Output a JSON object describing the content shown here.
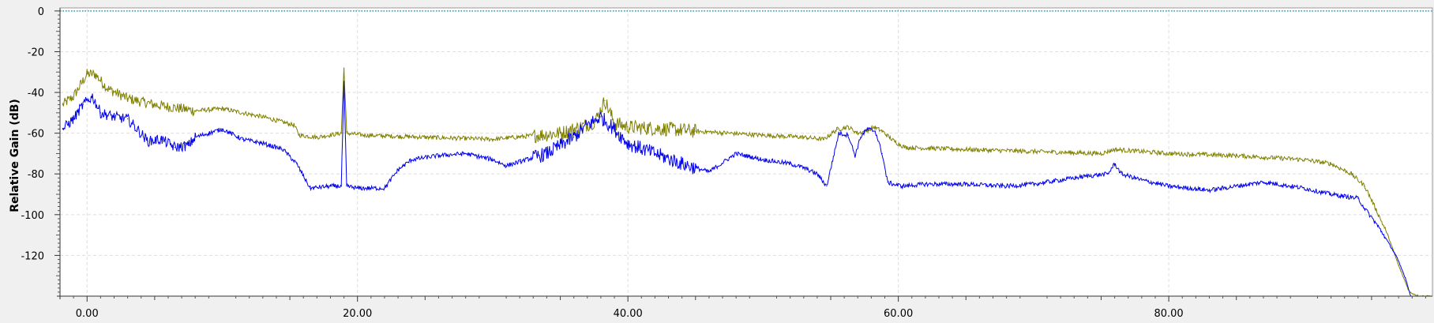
{
  "chart_data": {
    "type": "line",
    "title": "",
    "xlabel": "",
    "ylabel": "Relative Gain (dB)",
    "xlim": [
      -2.0,
      99.5
    ],
    "ylim": [
      -140,
      1.5
    ],
    "grid": true,
    "x_ticks": [
      0,
      20,
      40,
      60,
      80
    ],
    "x_tick_labels": [
      "0.00",
      "20.00",
      "40.00",
      "60.00",
      "80.00"
    ],
    "y_ticks": [
      0,
      -20,
      -40,
      -60,
      -80,
      -100,
      -120
    ],
    "y_tick_labels": [
      "0",
      "-20",
      "-40",
      "-60",
      "-80",
      "-100",
      "-120"
    ],
    "reference_line": {
      "y": 0,
      "color": "#1aa3b8",
      "style": "dotted"
    },
    "series": [
      {
        "color": "#808000",
        "x": [
          -1.8,
          -1,
          0,
          0.6,
          1.5,
          3,
          5,
          8,
          10,
          13,
          15.3,
          15.7,
          17,
          18.8,
          19.0,
          19.2,
          20.5,
          25,
          30,
          35,
          36.5,
          37.6,
          38.3,
          39,
          40,
          43,
          45,
          50,
          53,
          54.5,
          55.5,
          56.3,
          57.0,
          57.6,
          58.2,
          58.8,
          59.7,
          60.5,
          65,
          70,
          75,
          76,
          80,
          85,
          90,
          92,
          93.5,
          94.5,
          95.3,
          96.2,
          97,
          97.8,
          98.5,
          99.4
        ],
        "y": [
          -46,
          -42,
          -31,
          -31,
          -38,
          -43,
          -46,
          -49,
          -48,
          -52,
          -56,
          -61,
          -62,
          -60,
          -28,
          -60,
          -61,
          -62,
          -63,
          -60,
          -57,
          -54,
          -44,
          -55,
          -57,
          -58,
          -59,
          -61,
          -62,
          -63,
          -58,
          -57,
          -60,
          -59,
          -57,
          -59,
          -64,
          -67,
          -68,
          -69,
          -70,
          -68,
          -70,
          -71,
          -73,
          -75,
          -80,
          -86,
          -97,
          -110,
          -125,
          -138,
          -140,
          -140
        ]
      },
      {
        "color": "#0000ee",
        "x": [
          -1.8,
          -1,
          -0.3,
          0.4,
          1,
          2,
          3,
          3.7,
          4.5,
          5.5,
          6.5,
          7.5,
          8,
          9,
          10,
          11.5,
          13,
          14.5,
          15.5,
          16.5,
          18,
          18.8,
          19.0,
          19.2,
          20,
          22,
          23,
          24,
          26,
          28,
          30,
          31,
          32,
          34,
          36,
          37,
          38,
          39,
          40,
          42,
          44,
          46,
          48,
          50,
          52,
          53,
          54,
          54.7,
          55.6,
          56.3,
          56.8,
          57.2,
          57.7,
          58.3,
          58.8,
          59.2,
          59.6,
          60.3,
          62,
          65,
          68,
          70,
          72,
          74,
          75.5,
          76,
          76.5,
          78,
          80,
          83,
          86,
          87,
          88,
          90,
          92,
          93,
          94,
          94.5,
          95.3,
          96.0,
          96.8,
          97.5,
          97.9
        ],
        "y": [
          -58,
          -53,
          -46,
          -42,
          -50,
          -52,
          -53,
          -58,
          -64,
          -63,
          -67,
          -66,
          -62,
          -60,
          -58,
          -63,
          -65,
          -68,
          -75,
          -87,
          -86,
          -86,
          -35,
          -86,
          -87,
          -87,
          -78,
          -73,
          -71,
          -70,
          -73,
          -76,
          -74,
          -70,
          -62,
          -56,
          -52,
          -58,
          -65,
          -70,
          -75,
          -79,
          -70,
          -73,
          -75,
          -77,
          -80,
          -86,
          -60,
          -61,
          -71,
          -62,
          -58,
          -59,
          -70,
          -84,
          -85,
          -86,
          -85,
          -85,
          -86,
          -85,
          -83,
          -81,
          -80,
          -75,
          -80,
          -83,
          -86,
          -88,
          -85,
          -84,
          -85,
          -87,
          -90,
          -91,
          -92,
          -97,
          -104,
          -111,
          -120,
          -131,
          -140
        ]
      }
    ]
  }
}
